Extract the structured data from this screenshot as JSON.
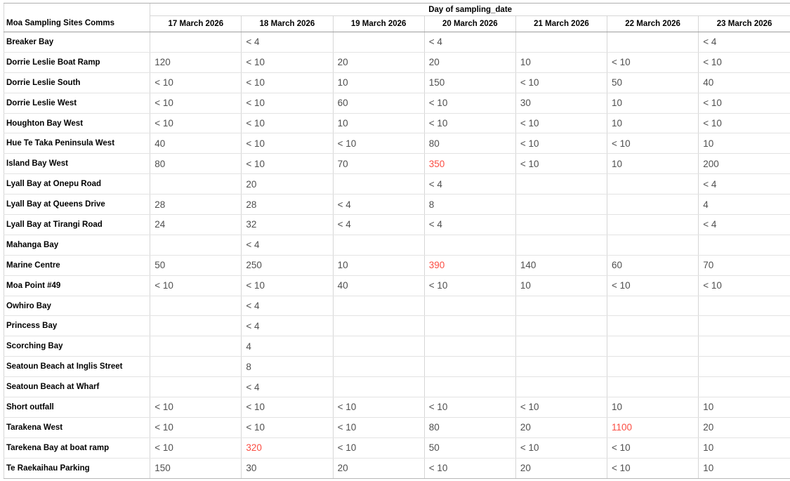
{
  "table": {
    "row_header_title": "Moa Sampling Sites Comms",
    "column_group_title": "Day of sampling_date",
    "date_columns": [
      "17 March 2026",
      "18 March 2026",
      "19 March 2026",
      "20 March 2026",
      "21 March 2026",
      "22 March 2026",
      "23 March 2026"
    ],
    "alert_color": "#fb4d42",
    "rows": [
      {
        "site": "Breaker Bay",
        "values": [
          "",
          "< 4",
          "",
          "< 4",
          "",
          "",
          "< 4"
        ],
        "alert_cols": []
      },
      {
        "site": "Dorrie Leslie Boat Ramp",
        "values": [
          "120",
          "< 10",
          "20",
          "20",
          "10",
          "< 10",
          "< 10"
        ],
        "alert_cols": []
      },
      {
        "site": "Dorrie Leslie South",
        "values": [
          "< 10",
          "< 10",
          "10",
          "150",
          "< 10",
          "50",
          "40"
        ],
        "alert_cols": []
      },
      {
        "site": "Dorrie Leslie West",
        "values": [
          "< 10",
          "< 10",
          "60",
          "< 10",
          "30",
          "10",
          "< 10"
        ],
        "alert_cols": []
      },
      {
        "site": "Houghton Bay West",
        "values": [
          "< 10",
          "< 10",
          "10",
          "< 10",
          "< 10",
          "10",
          "< 10"
        ],
        "alert_cols": []
      },
      {
        "site": "Hue Te Taka Peninsula West",
        "values": [
          "40",
          "< 10",
          "< 10",
          "80",
          "< 10",
          "< 10",
          "10"
        ],
        "alert_cols": []
      },
      {
        "site": "Island Bay West",
        "values": [
          "80",
          "< 10",
          "70",
          "350",
          "< 10",
          "10",
          "200"
        ],
        "alert_cols": [
          3
        ]
      },
      {
        "site": "Lyall Bay at Onepu Road",
        "values": [
          "",
          "20",
          "",
          "< 4",
          "",
          "",
          "< 4"
        ],
        "alert_cols": []
      },
      {
        "site": "Lyall Bay at Queens Drive",
        "values": [
          "28",
          "28",
          "< 4",
          "8",
          "",
          "",
          "4"
        ],
        "alert_cols": []
      },
      {
        "site": "Lyall Bay at Tirangi Road",
        "values": [
          "24",
          "32",
          "< 4",
          "< 4",
          "",
          "",
          "< 4"
        ],
        "alert_cols": []
      },
      {
        "site": "Mahanga Bay",
        "values": [
          "",
          "< 4",
          "",
          "",
          "",
          "",
          ""
        ],
        "alert_cols": []
      },
      {
        "site": "Marine Centre",
        "values": [
          "50",
          "250",
          "10",
          "390",
          "140",
          "60",
          "70"
        ],
        "alert_cols": [
          3
        ]
      },
      {
        "site": "Moa Point #49",
        "values": [
          "< 10",
          "< 10",
          "40",
          "< 10",
          "10",
          "< 10",
          "< 10"
        ],
        "alert_cols": []
      },
      {
        "site": "Owhiro Bay",
        "values": [
          "",
          "< 4",
          "",
          "",
          "",
          "",
          ""
        ],
        "alert_cols": []
      },
      {
        "site": "Princess Bay",
        "values": [
          "",
          "< 4",
          "",
          "",
          "",
          "",
          ""
        ],
        "alert_cols": []
      },
      {
        "site": "Scorching Bay",
        "values": [
          "",
          "4",
          "",
          "",
          "",
          "",
          ""
        ],
        "alert_cols": []
      },
      {
        "site": "Seatoun Beach at Inglis Street",
        "values": [
          "",
          "8",
          "",
          "",
          "",
          "",
          ""
        ],
        "alert_cols": []
      },
      {
        "site": "Seatoun Beach at Wharf",
        "values": [
          "",
          "< 4",
          "",
          "",
          "",
          "",
          ""
        ],
        "alert_cols": []
      },
      {
        "site": "Short outfall",
        "values": [
          "< 10",
          "< 10",
          "< 10",
          "< 10",
          "< 10",
          "10",
          "10"
        ],
        "alert_cols": []
      },
      {
        "site": "Tarakena West",
        "values": [
          "< 10",
          "< 10",
          "< 10",
          "80",
          "20",
          "1100",
          "20"
        ],
        "alert_cols": [
          5
        ]
      },
      {
        "site": "Tarekena Bay at boat ramp",
        "values": [
          "< 10",
          "320",
          "< 10",
          "50",
          "< 10",
          "< 10",
          "10"
        ],
        "alert_cols": [
          1
        ]
      },
      {
        "site": "Te Raekaihau Parking",
        "values": [
          "150",
          "30",
          "20",
          "< 10",
          "20",
          "< 10",
          "10"
        ],
        "alert_cols": []
      }
    ]
  }
}
